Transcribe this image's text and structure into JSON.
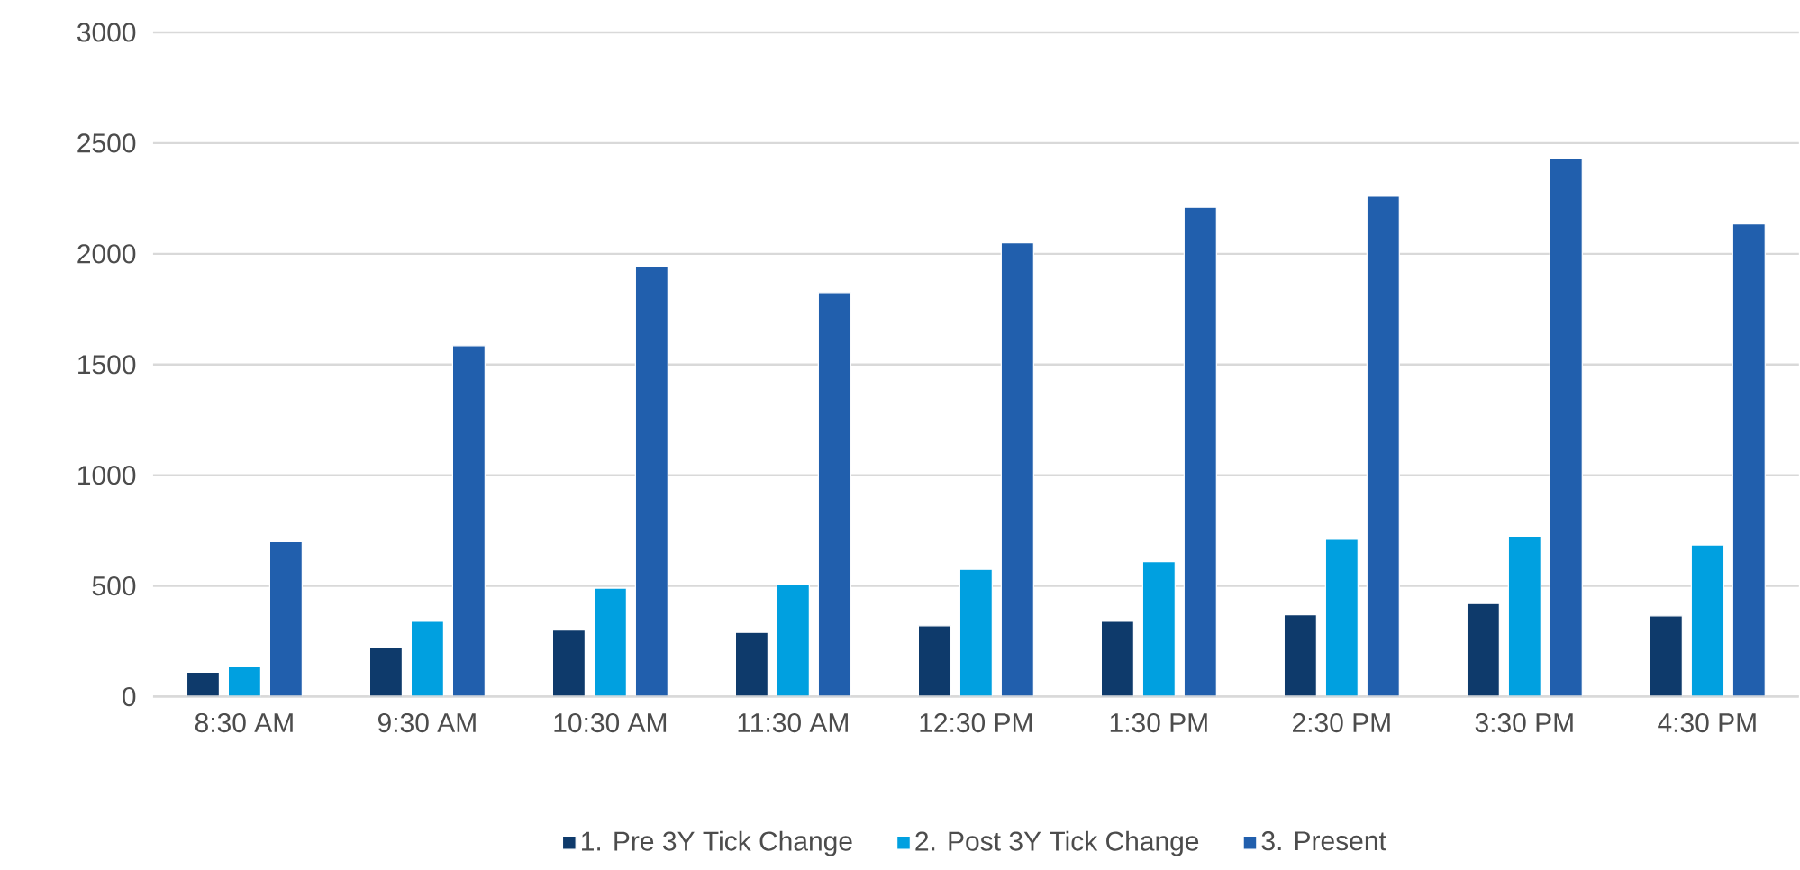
{
  "chart_data": {
    "type": "bar",
    "categories": [
      "8:30 AM",
      "9:30 AM",
      "10:30 AM",
      "11:30 AM",
      "12:30 PM",
      "1:30 PM",
      "2:30 PM",
      "3:30 PM",
      "4:30 PM"
    ],
    "series": [
      {
        "name": "1. Pre 3Y Tick Change",
        "color": "#0e3a6b",
        "values": [
          110,
          220,
          300,
          290,
          320,
          340,
          370,
          420,
          365
        ]
      },
      {
        "name": "2. Post 3Y Tick Change",
        "color": "#00a0e0",
        "values": [
          135,
          340,
          490,
          505,
          575,
          610,
          710,
          725,
          685
        ]
      },
      {
        "name": "3. Present",
        "color": "#215fad",
        "values": [
          700,
          1585,
          1945,
          1825,
          2050,
          2210,
          2260,
          2430,
          2135
        ]
      }
    ],
    "ylim": [
      0,
      3000
    ],
    "yticks": [
      0,
      500,
      1000,
      1500,
      2000,
      2500,
      3000
    ],
    "grid": "y",
    "legend": "bottom"
  }
}
